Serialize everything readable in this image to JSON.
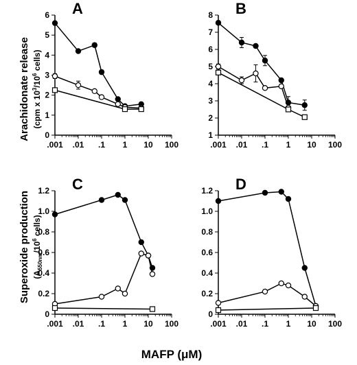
{
  "figure": {
    "xlabel": "MAFP (μM)",
    "ylabel_top": {
      "main": "Arachidonate release",
      "sub_prefix": "(cpm x 10",
      "sub_exp1": "3",
      "sub_mid": "/10",
      "sub_exp2": "6",
      "sub_suffix": " cells)"
    },
    "ylabel_bottom": {
      "main": "Superoxide production",
      "sub_prefix": "(A",
      "sub_sub": "550nm",
      "sub_mid": "/10",
      "sub_exp": "6",
      "sub_suffix": " cells)"
    }
  },
  "chart_data": [
    {
      "type": "line",
      "panel": "A",
      "xscale": "log",
      "xlim": [
        0.001,
        100
      ],
      "xticks": [
        ".001",
        ".01",
        ".1",
        "1",
        "10",
        "100"
      ],
      "ylim": [
        0,
        6
      ],
      "yticks": [
        "0",
        "1",
        "2",
        "3",
        "4",
        "5",
        "6"
      ],
      "series": [
        {
          "marker": "filled-circle",
          "x": [
            0.001,
            0.01,
            0.05,
            0.1,
            0.5,
            1,
            5
          ],
          "y": [
            5.6,
            4.2,
            4.5,
            3.15,
            1.8,
            1.45,
            1.55
          ],
          "err": [
            0,
            0,
            0.1,
            0.1,
            0,
            0,
            0
          ]
        },
        {
          "marker": "open-circle",
          "x": [
            0.001,
            0.01,
            0.05,
            0.1,
            0.5,
            1,
            5
          ],
          "y": [
            2.95,
            2.5,
            2.2,
            1.9,
            1.55,
            1.4,
            1.35
          ],
          "err": [
            0.12,
            0.2,
            0,
            0,
            0,
            0,
            0
          ]
        },
        {
          "marker": "open-square",
          "x": [
            0.001,
            1,
            5
          ],
          "y": [
            2.25,
            1.3,
            1.3
          ],
          "err": [
            0,
            0,
            0
          ]
        }
      ]
    },
    {
      "type": "line",
      "panel": "B",
      "xscale": "log",
      "xlim": [
        0.001,
        100
      ],
      "xticks": [
        ".001",
        ".01",
        ".1",
        "1",
        "10",
        "100"
      ],
      "ylim": [
        1,
        8
      ],
      "yticks": [
        "1",
        "2",
        "3",
        "4",
        "5",
        "6",
        "7",
        "8"
      ],
      "series": [
        {
          "marker": "filled-circle",
          "x": [
            0.001,
            0.01,
            0.04,
            0.1,
            0.5,
            1,
            5
          ],
          "y": [
            7.55,
            6.4,
            6.2,
            5.35,
            4.2,
            2.9,
            2.75
          ],
          "err": [
            0,
            0.3,
            0,
            0.3,
            0,
            0.35,
            0.3
          ]
        },
        {
          "marker": "open-circle",
          "x": [
            0.001,
            0.01,
            0.04,
            0.1,
            0.5,
            1
          ],
          "y": [
            5.0,
            4.2,
            4.6,
            3.75,
            3.85,
            2.6
          ],
          "err": [
            0.15,
            0.2,
            0.5,
            0,
            0,
            0
          ]
        },
        {
          "marker": "open-square",
          "x": [
            0.001,
            1,
            5
          ],
          "y": [
            4.65,
            2.5,
            2.05
          ],
          "err": [
            0,
            0,
            0
          ]
        }
      ]
    },
    {
      "type": "line",
      "panel": "C",
      "xscale": "log",
      "xlim": [
        0.001,
        100
      ],
      "xticks": [
        ".001",
        ".01",
        ".1",
        "1",
        "10",
        "100"
      ],
      "ylim": [
        0,
        1.2
      ],
      "yticks": [
        "0",
        "0.2",
        "0.4",
        "0.6",
        "0.8",
        "1.0",
        "1.2"
      ],
      "series": [
        {
          "marker": "filled-circle",
          "x": [
            0.001,
            0.1,
            0.5,
            1,
            5,
            10,
            15
          ],
          "y": [
            0.97,
            1.11,
            1.16,
            1.11,
            0.7,
            0.57,
            0.45
          ],
          "err": [
            0,
            0,
            0,
            0,
            0,
            0,
            0
          ]
        },
        {
          "marker": "open-circle",
          "x": [
            0.001,
            0.1,
            0.5,
            1,
            5,
            10,
            15
          ],
          "y": [
            0.1,
            0.17,
            0.25,
            0.2,
            0.59,
            0.57,
            0.39
          ],
          "err": [
            0,
            0,
            0,
            0,
            0,
            0,
            0
          ]
        },
        {
          "marker": "open-square",
          "x": [
            0.001,
            15
          ],
          "y": [
            0.06,
            0.05
          ],
          "err": [
            0,
            0
          ]
        }
      ]
    },
    {
      "type": "line",
      "panel": "D",
      "xscale": "log",
      "xlim": [
        0.001,
        100
      ],
      "xticks": [
        ".001",
        ".01",
        ".1",
        "1",
        "10",
        "100"
      ],
      "ylim": [
        0,
        1.2
      ],
      "yticks": [
        "0",
        "0.2",
        "0.4",
        "0.6",
        "0.8",
        "1.0",
        "1.2"
      ],
      "series": [
        {
          "marker": "filled-circle",
          "x": [
            0.001,
            0.1,
            0.5,
            1,
            5,
            15
          ],
          "y": [
            1.1,
            1.18,
            1.19,
            1.12,
            0.45,
            0.08
          ],
          "err": [
            0,
            0,
            0,
            0,
            0,
            0
          ]
        },
        {
          "marker": "open-circle",
          "x": [
            0.001,
            0.1,
            0.5,
            1,
            5,
            15
          ],
          "y": [
            0.11,
            0.22,
            0.3,
            0.28,
            0.17,
            0.08
          ],
          "err": [
            0,
            0,
            0,
            0,
            0,
            0
          ]
        },
        {
          "marker": "open-square",
          "x": [
            0.001,
            15
          ],
          "y": [
            0.04,
            0.06
          ],
          "err": [
            0,
            0
          ]
        }
      ]
    }
  ]
}
